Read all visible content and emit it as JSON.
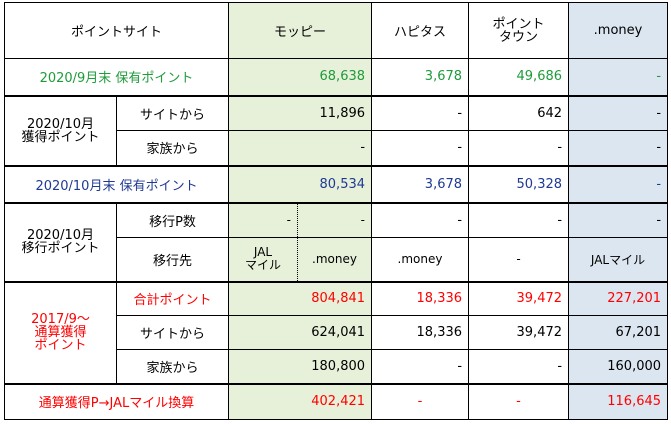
{
  "header": {
    "corner": "ポイントサイト",
    "col1": "モッピー",
    "col2": "ハピタス",
    "col3_line1": "ポイント",
    "col3_line2": "タウン",
    "col4": ".money"
  },
  "row_sep": {
    "label": "2020/9月末 保有ポイント",
    "values": [
      "68,638",
      "3,678",
      "49,686",
      "-"
    ]
  },
  "oct_earned": {
    "group_line1": "2020/10月",
    "group_line2": "獲得ポイント",
    "site": {
      "label": "サイトから",
      "values": [
        "11,896",
        "-",
        "642",
        "-"
      ]
    },
    "family": {
      "label": "家族から",
      "values": [
        "-",
        "-",
        "-",
        "-"
      ]
    }
  },
  "row_oct_end": {
    "label": "2020/10月末 保有ポイント",
    "values": [
      "80,534",
      "3,678",
      "50,328",
      "-"
    ]
  },
  "oct_transfer": {
    "group_line1": "2020/10月",
    "group_line2": "移行ポイント",
    "count": {
      "label": "移行P数",
      "moppy_left": "-",
      "moppy_right": "-",
      "values": [
        "-",
        "-",
        "-"
      ]
    },
    "dest": {
      "label": "移行先",
      "moppy_left_1": "JAL",
      "moppy_left_2": "マイル",
      "moppy_right": ".money",
      "values": [
        ".money",
        "-",
        "JALマイル"
      ]
    }
  },
  "cumulative": {
    "group_line1": "2017/9〜",
    "group_line2": "通算獲得",
    "group_line3": "ポイント",
    "total": {
      "label": "合計ポイント",
      "values": [
        "804,841",
        "18,336",
        "39,472",
        "227,201"
      ]
    },
    "site": {
      "label": "サイトから",
      "values": [
        "624,041",
        "18,336",
        "39,472",
        "67,201"
      ]
    },
    "family": {
      "label": "家族から",
      "values": [
        "180,800",
        "-",
        "-",
        "160,000"
      ]
    }
  },
  "jal_conversion": {
    "label": "通算獲得P→JALマイル換算",
    "values": [
      "402,421",
      "-",
      "-",
      "116,645"
    ]
  },
  "colors": {
    "moppy_bg": "#e7f1da",
    "money_bg": "#dce6f1",
    "green_text": "#1f9b3a",
    "navy_text": "#1f3a93",
    "red_text": "#ff0000"
  }
}
